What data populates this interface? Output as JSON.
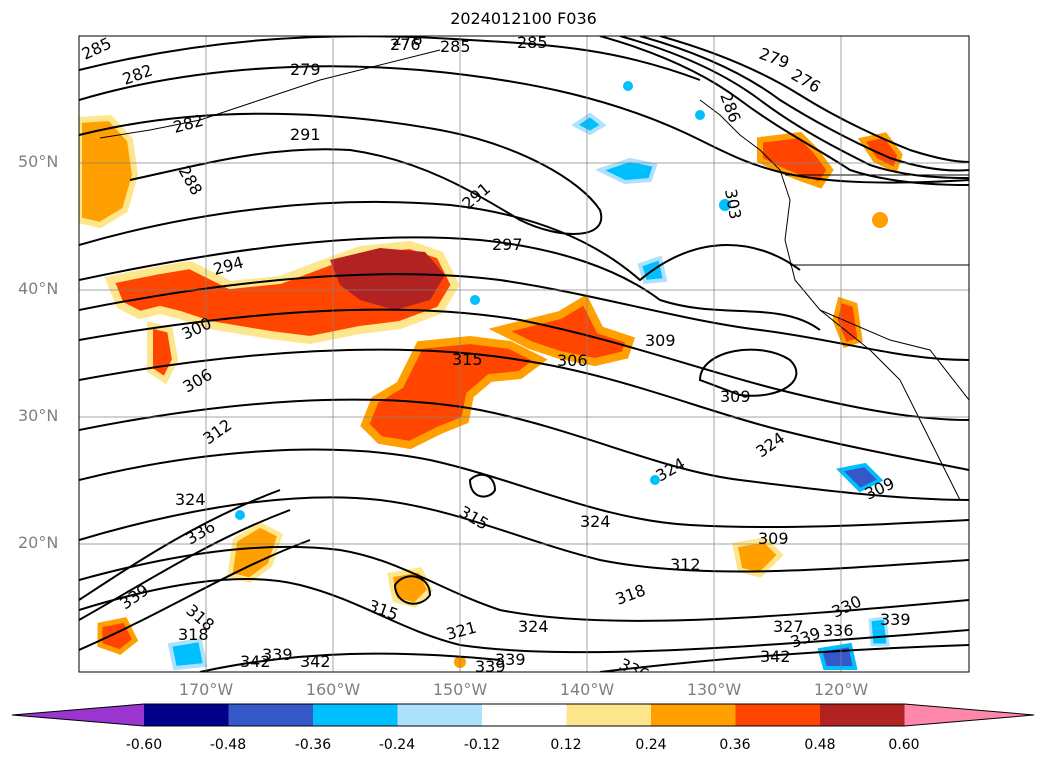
{
  "title": "2024012100 F036",
  "lat_labels": [
    "50°N",
    "40°N",
    "30°N",
    "20°N"
  ],
  "lon_labels": [
    "170°W",
    "160°W",
    "150°W",
    "140°W",
    "130°W",
    "120°W"
  ],
  "colorbar": {
    "ticks": [
      "-0.60",
      "-0.48",
      "-0.36",
      "-0.24",
      "-0.12",
      "0.12",
      "0.24",
      "0.36",
      "0.48",
      "0.60"
    ],
    "colors": [
      "#9a35d0",
      "#00008b",
      "#3558c9",
      "#00bfff",
      "#aee1fb",
      "#ffffff",
      "#fde68b",
      "#ffa000",
      "#ff4500",
      "#b22222",
      "#ff88aa"
    ]
  },
  "contour_labels": [
    "285",
    "282",
    "282",
    "288",
    "279",
    "276",
    "285",
    "285",
    "291",
    "291",
    "297",
    "294",
    "300",
    "306",
    "315",
    "306",
    "309",
    "309",
    "312",
    "324",
    "324",
    "324",
    "315",
    "324",
    "309",
    "312",
    "309",
    "303",
    "318",
    "336",
    "339",
    "318",
    "318",
    "315",
    "321",
    "324",
    "339",
    "327",
    "330",
    "336",
    "339",
    "342",
    "339",
    "336",
    "342",
    "342",
    "339",
    "339",
    "276",
    "279",
    "286",
    "276"
  ]
}
